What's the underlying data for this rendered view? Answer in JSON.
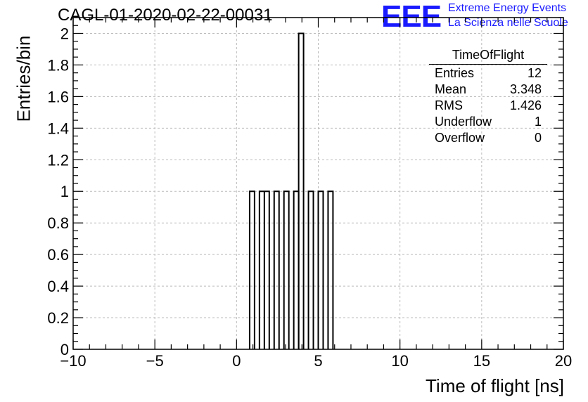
{
  "header": {
    "run_title": "CAGL-01-2020-02-22-00031",
    "logo_text": "EEE",
    "brand_line1": "Extreme Energy Events",
    "brand_line2": "La Scienza nelle Scuole"
  },
  "stats": {
    "title": "TimeOfFlight",
    "rows": [
      {
        "label": "Entries",
        "value": "12"
      },
      {
        "label": "Mean",
        "value": "3.348"
      },
      {
        "label": "RMS",
        "value": "1.426"
      },
      {
        "label": "Underflow",
        "value": "1"
      },
      {
        "label": "Overflow",
        "value": "0"
      }
    ]
  },
  "colors": {
    "brand": "#1a1aff",
    "line": "#000000",
    "grid": "#bbbbbb"
  },
  "chart_data": {
    "type": "bar",
    "xlabel": "Time of flight [ns]",
    "ylabel": "Entries/bin",
    "xlim": [
      -10,
      20
    ],
    "ylim": [
      0,
      2.1
    ],
    "grid": true,
    "bin_width": 0.3,
    "bins": [
      {
        "x0": 0.8,
        "x1": 1.1,
        "count": 1
      },
      {
        "x0": 1.4,
        "x1": 2.0,
        "count": 1
      },
      {
        "x0": 2.3,
        "x1": 2.6,
        "count": 1
      },
      {
        "x0": 2.9,
        "x1": 3.2,
        "count": 1
      },
      {
        "x0": 3.5,
        "x1": 3.8,
        "count": 1
      },
      {
        "x0": 3.8,
        "x1": 4.1,
        "count": 2
      },
      {
        "x0": 4.4,
        "x1": 4.7,
        "count": 1
      },
      {
        "x0": 5.0,
        "x1": 5.3,
        "count": 1
      },
      {
        "x0": 5.6,
        "x1": 5.9,
        "count": 1
      }
    ],
    "x_ticks": [
      {
        "value": -10,
        "label": "−10"
      },
      {
        "value": -5,
        "label": "−5"
      },
      {
        "value": 0,
        "label": "0"
      },
      {
        "value": 5,
        "label": "5"
      },
      {
        "value": 10,
        "label": "10"
      },
      {
        "value": 15,
        "label": "15"
      },
      {
        "value": 20,
        "label": "20"
      }
    ],
    "y_ticks": [
      {
        "value": 0,
        "label": "0"
      },
      {
        "value": 0.2,
        "label": "0.2"
      },
      {
        "value": 0.4,
        "label": "0.4"
      },
      {
        "value": 0.6,
        "label": "0.6"
      },
      {
        "value": 0.8,
        "label": "0.8"
      },
      {
        "value": 1.0,
        "label": "1"
      },
      {
        "value": 1.2,
        "label": "1.2"
      },
      {
        "value": 1.4,
        "label": "1.4"
      },
      {
        "value": 1.6,
        "label": "1.6"
      },
      {
        "value": 1.8,
        "label": "1.8"
      },
      {
        "value": 2.0,
        "label": "2"
      }
    ]
  }
}
